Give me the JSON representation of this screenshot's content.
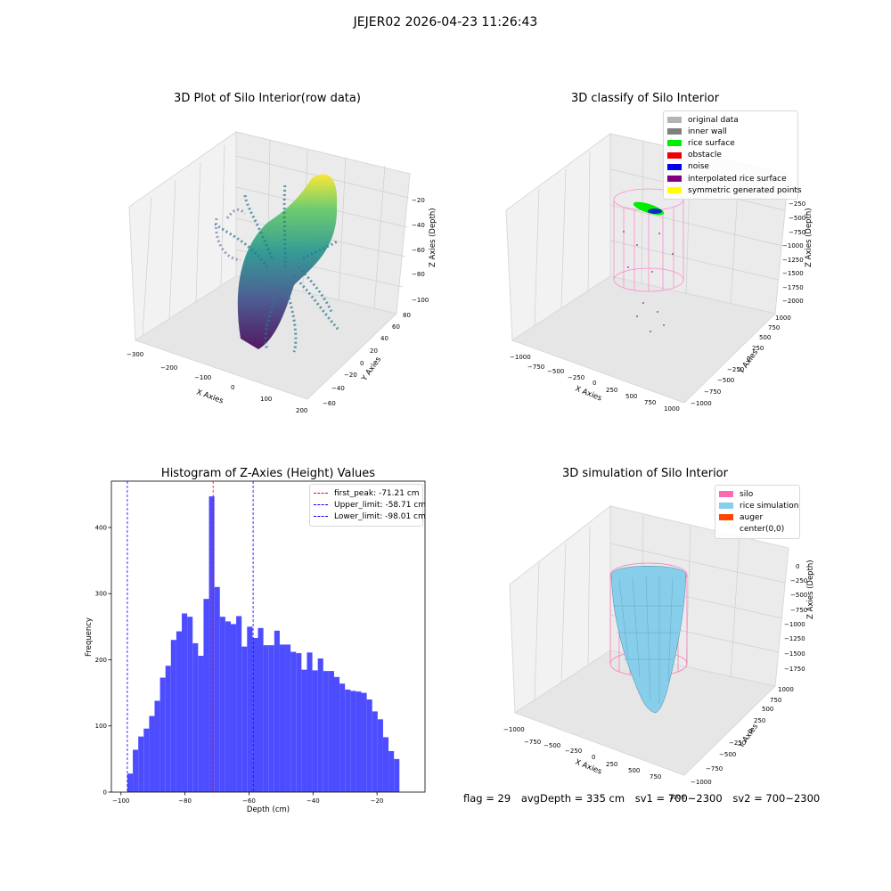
{
  "figure": {
    "suptitle": "JEJER02 2026-04-23 11:26:43"
  },
  "panels": {
    "raw3d": {
      "title": "3D Plot of Silo Interior(row data)",
      "xlabel": "X Axies",
      "ylabel": "Y Axies",
      "zlabel": "Z Axies (Depth)",
      "xticks": [
        "−300",
        "−200",
        "−100",
        "0",
        "100",
        "200"
      ],
      "yticks": [
        "−60",
        "−40",
        "−20",
        "0",
        "20",
        "40",
        "60",
        "80"
      ],
      "zticks": [
        "−100",
        "−80",
        "−60",
        "−40",
        "−20"
      ]
    },
    "classify3d": {
      "title": "3D classify of Silo Interior",
      "xlabel": "X Axies",
      "ylabel": "Y Axies",
      "zlabel": "Z Axies (Depth)",
      "xticks": [
        "−1000",
        "−750",
        "−500",
        "−250",
        "0",
        "250",
        "500",
        "750",
        "1000"
      ],
      "yticks": [
        "−1000",
        "−750",
        "−500",
        "−250",
        "0",
        "250",
        "500",
        "750",
        "1000"
      ],
      "zticks": [
        "0",
        "−250",
        "−500",
        "−750",
        "−1000",
        "−1250",
        "−1500",
        "−1750",
        "−2000"
      ],
      "legend": [
        {
          "label": "original data",
          "color": "#b3b3b3"
        },
        {
          "label": "inner wall",
          "color": "#808080"
        },
        {
          "label": "rice surface",
          "color": "#00ee00"
        },
        {
          "label": "obstacle",
          "color": "#ee0000"
        },
        {
          "label": "noise",
          "color": "#0000ee"
        },
        {
          "label": "interpolated rice surface",
          "color": "#800080"
        },
        {
          "label": "symmetric generated points",
          "color": "#ffff00"
        }
      ]
    },
    "simulation3d": {
      "title": "3D simulation of Silo Interior",
      "xlabel": "X Axies",
      "ylabel": "Y Axies",
      "zlabel": "Z Axies (Depth)",
      "xticks": [
        "−1000",
        "−750",
        "−500",
        "−250",
        "0",
        "250",
        "500",
        "750",
        "1000"
      ],
      "yticks": [
        "−1000",
        "−750",
        "−500",
        "−250",
        "0",
        "250",
        "500",
        "750",
        "1000"
      ],
      "zticks": [
        "0",
        "−250",
        "−500",
        "−750",
        "−1000",
        "−1250",
        "−1500",
        "−1750"
      ],
      "legend": [
        {
          "label": "silo",
          "color": "#ff69b4"
        },
        {
          "label": "rice simulation",
          "color": "#87ceeb"
        },
        {
          "label": "auger",
          "color": "#ff4500"
        },
        {
          "label": "center(0,0)",
          "color": "#ffffff"
        }
      ]
    }
  },
  "status": {
    "flag": "flag = 29",
    "avg_depth": "avgDepth = 335 cm",
    "sv1": "sv1 = 700~2300",
    "sv2": "sv2 = 700~2300"
  },
  "chart_data": {
    "type": "bar",
    "title": "Histogram of Z-Axies (Height) Values",
    "xlabel": "Depth (cm)",
    "ylabel": "Frequency",
    "xlim": [
      -103,
      -5
    ],
    "ylim": [
      0,
      470
    ],
    "xticks": [
      -100,
      -80,
      -60,
      -40,
      -20
    ],
    "yticks": [
      0,
      100,
      200,
      300,
      400
    ],
    "bar_color": "#4d4dff",
    "bin_start": -98.0,
    "bin_width": 1.7,
    "values": [
      28,
      64,
      84,
      96,
      115,
      138,
      173,
      191,
      230,
      243,
      270,
      265,
      225,
      206,
      292,
      447,
      310,
      265,
      258,
      254,
      266,
      220,
      250,
      233,
      248,
      222,
      222,
      244,
      223,
      223,
      212,
      210,
      185,
      211,
      184,
      202,
      183,
      183,
      174,
      164,
      155,
      153,
      152,
      150,
      140,
      122,
      110,
      83,
      62,
      50
    ],
    "vlines": [
      {
        "label": "first_peak: -71.21 cm",
        "x": -71.21,
        "color": "#ff0000"
      },
      {
        "label": "Upper_limit: -58.71 cm",
        "x": -58.71,
        "color": "#0000ff"
      },
      {
        "label": "Lower_limit: -98.01 cm",
        "x": -98.01,
        "color": "#0000ff"
      }
    ],
    "legend_position": "top-right"
  }
}
